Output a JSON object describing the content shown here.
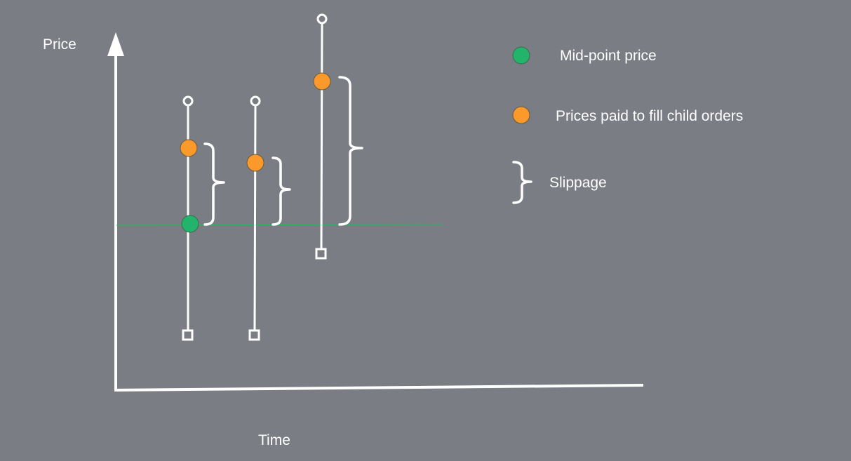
{
  "colors": {
    "background": "#7a7d84",
    "axis": "#ffffff",
    "midpoint": "#22b46a",
    "fill_price": "#fb9a2b",
    "midline": "#2fb25e"
  },
  "axes": {
    "y_label": "Price",
    "x_label": "Time"
  },
  "legend": {
    "midpoint_label": "Mid-point price",
    "fill_label": "Prices paid to fill child orders",
    "slippage_label": "Slippage"
  },
  "icons": {
    "midpoint_marker": "green-circle",
    "fill_marker": "orange-circle",
    "slippage_marker": "right-curly-brace",
    "high_marker": "hollow-circle",
    "low_marker": "hollow-square"
  }
}
